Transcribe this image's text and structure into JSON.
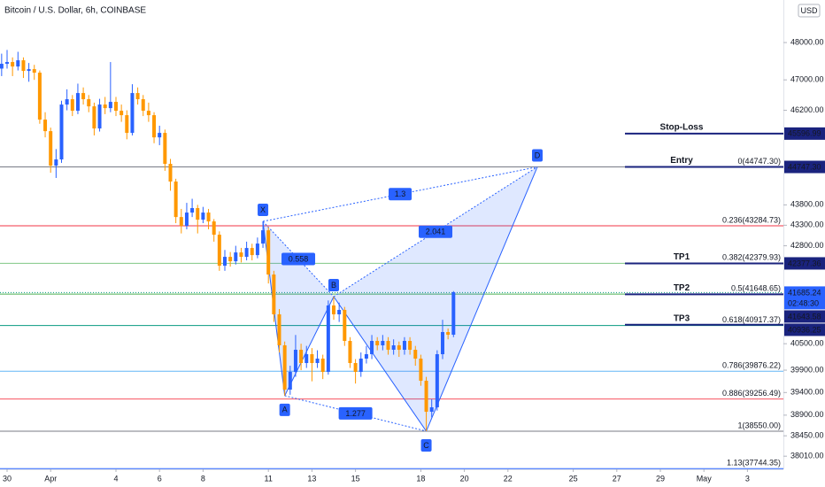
{
  "chart_data": {
    "type": "candlestick",
    "title": "Bitcoin / U.S. Dollar, 6h, COINBASE",
    "currency": "USD",
    "log_scale": true,
    "up_color": "#2962ff",
    "down_color": "#ff9800",
    "x": [
      -1,
      0,
      1,
      2,
      3,
      4,
      5,
      6,
      7,
      8,
      9,
      10,
      11,
      12,
      13,
      14,
      15,
      16,
      17,
      18,
      19,
      20,
      21,
      22,
      23,
      24,
      25,
      26,
      27,
      28,
      29,
      30,
      31,
      32,
      33,
      34,
      35,
      36,
      37,
      38,
      39,
      40,
      41,
      42,
      43,
      44,
      45,
      46,
      47,
      48,
      49,
      50,
      51,
      52,
      53,
      54,
      55,
      56,
      57,
      58,
      59,
      60,
      61,
      62,
      63,
      64,
      65,
      66,
      67,
      68,
      69,
      70,
      71,
      72,
      73,
      74,
      75,
      76,
      77,
      78,
      79,
      80,
      81,
      82
    ],
    "open": [
      47300,
      47428,
      47475,
      47356,
      47522,
      47238,
      47285,
      47191,
      45958,
      45660,
      44780,
      44937,
      46350,
      46490,
      46188,
      46652,
      46490,
      46303,
      45729,
      46350,
      46257,
      46420,
      46188,
      46073,
      45615,
      46652,
      46490,
      46188,
      46073,
      45500,
      45615,
      44825,
      44380,
      43500,
      43285,
      43610,
      43720,
      43436,
      43610,
      43393,
      43068,
      42322,
      42534,
      42428,
      42640,
      42534,
      42747,
      42576,
      42854,
      43176,
      42112,
      41177,
      40463,
      39465,
      39862,
      40362,
      40061,
      40261,
      40061,
      40161,
      39862,
      41383,
      41177,
      41280,
      40564,
      40061,
      39862,
      40161,
      40261,
      40564,
      40463,
      40564,
      40362,
      40463,
      40362,
      40564,
      40362,
      40161,
      39663,
      38975,
      39073,
      40261,
      40767,
      40706
    ],
    "high": [
      47700,
      47800,
      47600,
      47750,
      47600,
      47450,
      47400,
      47250,
      46150,
      45750,
      45200,
      46450,
      46750,
      46600,
      46900,
      46800,
      46600,
      46400,
      46500,
      46550,
      47475,
      46550,
      46350,
      46200,
      46885,
      46800,
      46600,
      46400,
      46150,
      45800,
      45700,
      44950,
      44450,
      43700,
      43850,
      43950,
      43800,
      43750,
      43700,
      43450,
      43150,
      42700,
      42650,
      42800,
      42750,
      42900,
      42850,
      43000,
      43393,
      43250,
      42200,
      41300,
      40550,
      40000,
      40700,
      40500,
      40450,
      40400,
      40350,
      40250,
      41500,
      41590,
      41450,
      41350,
      40650,
      40150,
      40300,
      40450,
      40700,
      40650,
      40700,
      40650,
      40600,
      40550,
      40650,
      40650,
      40450,
      40250,
      39750,
      39250,
      40350,
      41050,
      40850,
      41720
    ],
    "low": [
      47100,
      47300,
      47100,
      47250,
      47050,
      46950,
      47000,
      45850,
      45500,
      44600,
      44470,
      44850,
      46200,
      46050,
      46100,
      46350,
      46150,
      45550,
      45650,
      46100,
      46150,
      46050,
      45900,
      45450,
      45550,
      46350,
      46050,
      45900,
      45350,
      45300,
      44650,
      44150,
      43350,
      43100,
      43200,
      43500,
      43100,
      43350,
      43200,
      42900,
      42200,
      42200,
      42300,
      42350,
      42400,
      42450,
      42450,
      42500,
      42750,
      41900,
      41000,
      40300,
      39330,
      39350,
      39750,
      39900,
      39950,
      39650,
      39950,
      39700,
      39800,
      41050,
      41000,
      40450,
      39950,
      39600,
      39750,
      40050,
      40150,
      40350,
      40350,
      40250,
      40250,
      40200,
      40250,
      40250,
      40000,
      39550,
      38550,
      38850,
      39000,
      40150,
      40600,
      40650
    ],
    "close": [
      47428,
      47475,
      47356,
      47522,
      47238,
      47285,
      47191,
      45958,
      45660,
      44780,
      44937,
      46350,
      46490,
      46188,
      46652,
      46490,
      46303,
      45729,
      46350,
      46257,
      46420,
      46188,
      46073,
      45615,
      46652,
      46490,
      46188,
      46073,
      45500,
      45615,
      44825,
      44380,
      43500,
      43285,
      43610,
      43720,
      43436,
      43610,
      43393,
      43068,
      42322,
      42534,
      42428,
      42640,
      42534,
      42747,
      42576,
      42854,
      43176,
      42112,
      41177,
      40463,
      39465,
      39862,
      40362,
      40061,
      40261,
      40061,
      40161,
      39862,
      41383,
      41177,
      41280,
      40564,
      40061,
      39862,
      40161,
      40261,
      40564,
      40463,
      40564,
      40362,
      40463,
      40362,
      40564,
      40362,
      40161,
      39663,
      38975,
      39073,
      40261,
      40767,
      40706,
      41694
    ],
    "xlim": [
      -1.3,
      142.6
    ],
    "xticks": [
      {
        "value": 0,
        "label": "30"
      },
      {
        "value": 8,
        "label": "Apr"
      },
      {
        "value": 20,
        "label": "4"
      },
      {
        "value": 28,
        "label": "6"
      },
      {
        "value": 36,
        "label": "8"
      },
      {
        "value": 48,
        "label": "11"
      },
      {
        "value": 56,
        "label": "13"
      },
      {
        "value": 64,
        "label": "15"
      },
      {
        "value": 76,
        "label": "18"
      },
      {
        "value": 84,
        "label": "20"
      },
      {
        "value": 92,
        "label": "22"
      },
      {
        "value": 104,
        "label": "25"
      },
      {
        "value": 112,
        "label": "27"
      },
      {
        "value": 120,
        "label": "29"
      },
      {
        "value": 128,
        "label": "May"
      },
      {
        "value": 136,
        "label": "3"
      }
    ],
    "ylim": [
      37730,
      49166
    ],
    "yticks": [
      {
        "value": 48000,
        "label": "48000.00"
      },
      {
        "value": 47000,
        "label": "47000.00"
      },
      {
        "value": 46200,
        "label": "46200.00"
      },
      {
        "value": 43800,
        "label": "43800.00"
      },
      {
        "value": 43300,
        "label": "43300.00"
      },
      {
        "value": 42800,
        "label": "42800.00"
      },
      {
        "value": 40500,
        "label": "40500.00"
      },
      {
        "value": 39900,
        "label": "39900.00"
      },
      {
        "value": 39400,
        "label": "39400.00"
      },
      {
        "value": 38900,
        "label": "38900.00"
      },
      {
        "value": 38450,
        "label": "38450.00"
      },
      {
        "value": 38010,
        "label": "38010.00"
      }
    ],
    "fib_levels": [
      {
        "label": "0(44747.30)",
        "value": 44747.3,
        "color": "#787b86"
      },
      {
        "label": "0.236(43284.73)",
        "value": 43284.73,
        "color": "#f23645"
      },
      {
        "label": "0.382(42379.93)",
        "value": 42379.93,
        "color": "#81c784"
      },
      {
        "label": "0.5(41648.65)",
        "value": 41648.65,
        "color": "#4caf50"
      },
      {
        "label": "0.618(40917.37)",
        "value": 40917.37,
        "color": "#089981"
      },
      {
        "label": "0.786(39876.22)",
        "value": 39876.22,
        "color": "#64b5f6"
      },
      {
        "label": "0.886(39256.49)",
        "value": 39256.49,
        "color": "#f7525f"
      },
      {
        "label": "1(38550.00)",
        "value": 38550,
        "color": "#787b86"
      },
      {
        "label": "1.13(37744.35)",
        "value": 37744.35,
        "color": "#2962ff"
      }
    ],
    "levels": [
      {
        "name": "Stop-Loss",
        "value": 45596.99,
        "label": "45596.99"
      },
      {
        "name": "Entry",
        "value": 44747.3,
        "label": "44747.30"
      },
      {
        "name": "TP1",
        "value": 42377.36,
        "label": "42377.36"
      },
      {
        "name": "TP2",
        "value": 41643.58,
        "label": "41643.58"
      },
      {
        "name": "TP3",
        "value": 40936.25,
        "label": "40936.25"
      }
    ],
    "level_color": "#1a237e",
    "last_price": {
      "value": 41685.24,
      "label": "41685.24",
      "countdown": "02:48:30",
      "color": "#2962ff"
    },
    "pattern": {
      "color": "#2962ff",
      "points": [
        {
          "label": "X",
          "x": 47,
          "y": 43393
        },
        {
          "label": "A",
          "x": 51,
          "y": 39330
        },
        {
          "label": "B",
          "x": 60,
          "y": 41590
        },
        {
          "label": "C",
          "x": 77,
          "y": 38550
        },
        {
          "label": "D",
          "x": 97.4,
          "y": 44747.3
        }
      ],
      "ratios": [
        "0.558",
        "1.3",
        "2.041",
        "1.277"
      ]
    }
  }
}
